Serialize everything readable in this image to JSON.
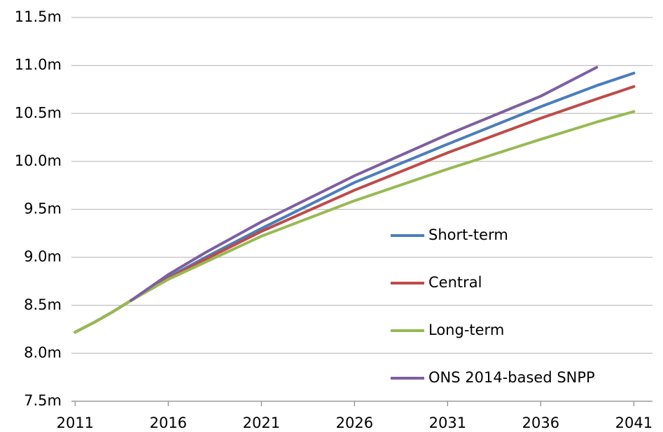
{
  "chart_data": {
    "type": "line",
    "x": [
      2011,
      2012,
      2013,
      2014,
      2016,
      2018,
      2021,
      2026,
      2031,
      2036,
      2039,
      2041
    ],
    "series": [
      {
        "name": "Short-term",
        "color": "#4a7ebb",
        "values": [
          8.22,
          8.32,
          8.43,
          8.55,
          8.79,
          9.0,
          9.3,
          9.78,
          10.18,
          10.57,
          10.79,
          10.92
        ]
      },
      {
        "name": "Central",
        "color": "#be4b48",
        "values": [
          8.22,
          8.32,
          8.43,
          8.55,
          8.78,
          8.98,
          9.27,
          9.7,
          10.09,
          10.45,
          10.65,
          10.78
        ]
      },
      {
        "name": "Long-term",
        "color": "#98b954",
        "values": [
          8.22,
          8.32,
          8.43,
          8.55,
          8.77,
          8.95,
          9.22,
          9.59,
          9.92,
          10.23,
          10.41,
          10.52
        ]
      },
      {
        "name": "ONS 2014-based SNPP",
        "color": "#7d5fa0",
        "values": [
          null,
          null,
          null,
          8.55,
          8.82,
          9.05,
          9.37,
          9.85,
          10.28,
          10.68,
          10.98,
          null
        ]
      }
    ],
    "xlim": [
      2010.8,
      2042
    ],
    "xticks": [
      2011,
      2016,
      2021,
      2026,
      2031,
      2036,
      2041
    ],
    "ylim": [
      7.5,
      11.5
    ],
    "yticks": [
      {
        "value": 7.5,
        "label": "7.5m"
      },
      {
        "value": 8.0,
        "label": "8.0m"
      },
      {
        "value": 8.5,
        "label": "8.5m"
      },
      {
        "value": 9.0,
        "label": "9.0m"
      },
      {
        "value": 9.5,
        "label": "9.5m"
      },
      {
        "value": 10.0,
        "label": "10.0m"
      },
      {
        "value": 10.5,
        "label": "10.5m"
      },
      {
        "value": 11.0,
        "label": "11.0m"
      },
      {
        "value": 11.5,
        "label": "11.5m"
      }
    ],
    "grid": true
  }
}
